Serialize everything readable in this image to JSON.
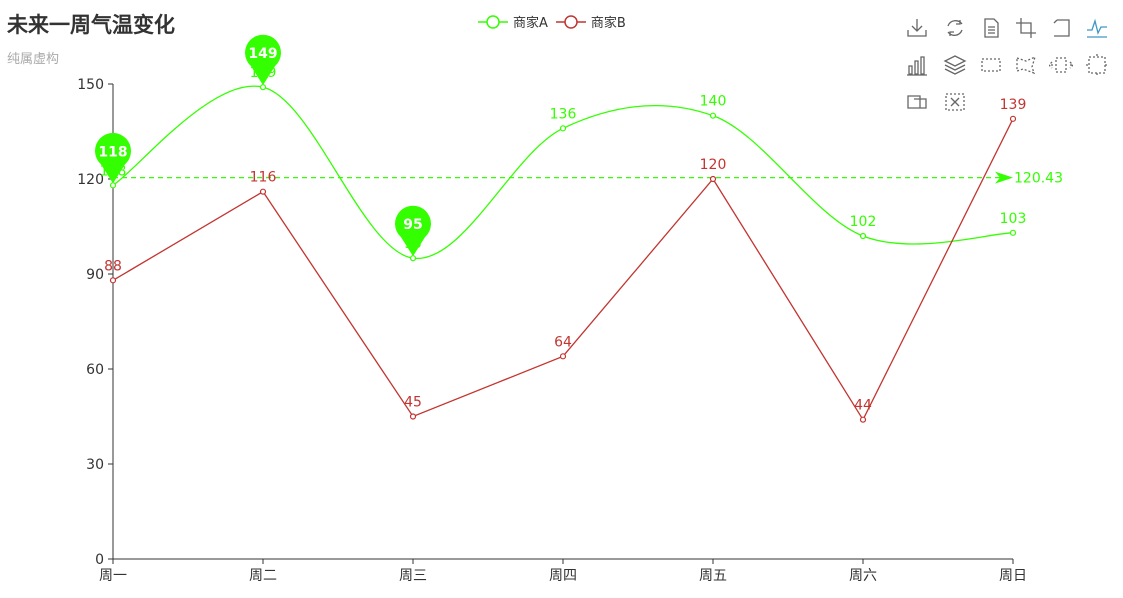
{
  "title": "未来一周气温变化",
  "subtitle": "纯属虚构",
  "legend": [
    {
      "name": "商家A",
      "color": "#33ff00"
    },
    {
      "name": "商家B",
      "color": "#c23531"
    }
  ],
  "toolbox": [
    {
      "icon": "download-icon"
    },
    {
      "icon": "refresh-icon"
    },
    {
      "icon": "data-view-icon"
    },
    {
      "icon": "crop-icon"
    },
    {
      "icon": "undo-icon"
    },
    {
      "icon": "line-chart-icon"
    },
    {
      "icon": "bar-chart-icon"
    },
    {
      "icon": "stack-icon"
    },
    {
      "icon": "rect-select-icon"
    },
    {
      "icon": "polygon-select-icon"
    },
    {
      "icon": "keep-select-icon"
    },
    {
      "icon": "expand-select-icon"
    },
    {
      "icon": "zoom-icon"
    },
    {
      "icon": "zoom-reset-icon"
    }
  ],
  "chart_data": {
    "type": "line",
    "categories": [
      "周一",
      "周二",
      "周三",
      "周四",
      "周五",
      "周六",
      "周日"
    ],
    "ylim": [
      0,
      150
    ],
    "yticks": [
      0,
      30,
      60,
      90,
      120,
      150
    ],
    "series": [
      {
        "name": "商家A",
        "color": "#33ff00",
        "smooth": true,
        "values": [
          118,
          149,
          95,
          136,
          140,
          102,
          103
        ],
        "markPoints": [
          118,
          149,
          95
        ],
        "markLine": {
          "type": "average",
          "value": 120.43,
          "label": "120.43"
        }
      },
      {
        "name": "商家B",
        "color": "#c23531",
        "smooth": false,
        "values": [
          88,
          116,
          45,
          64,
          120,
          44,
          139
        ]
      }
    ]
  }
}
